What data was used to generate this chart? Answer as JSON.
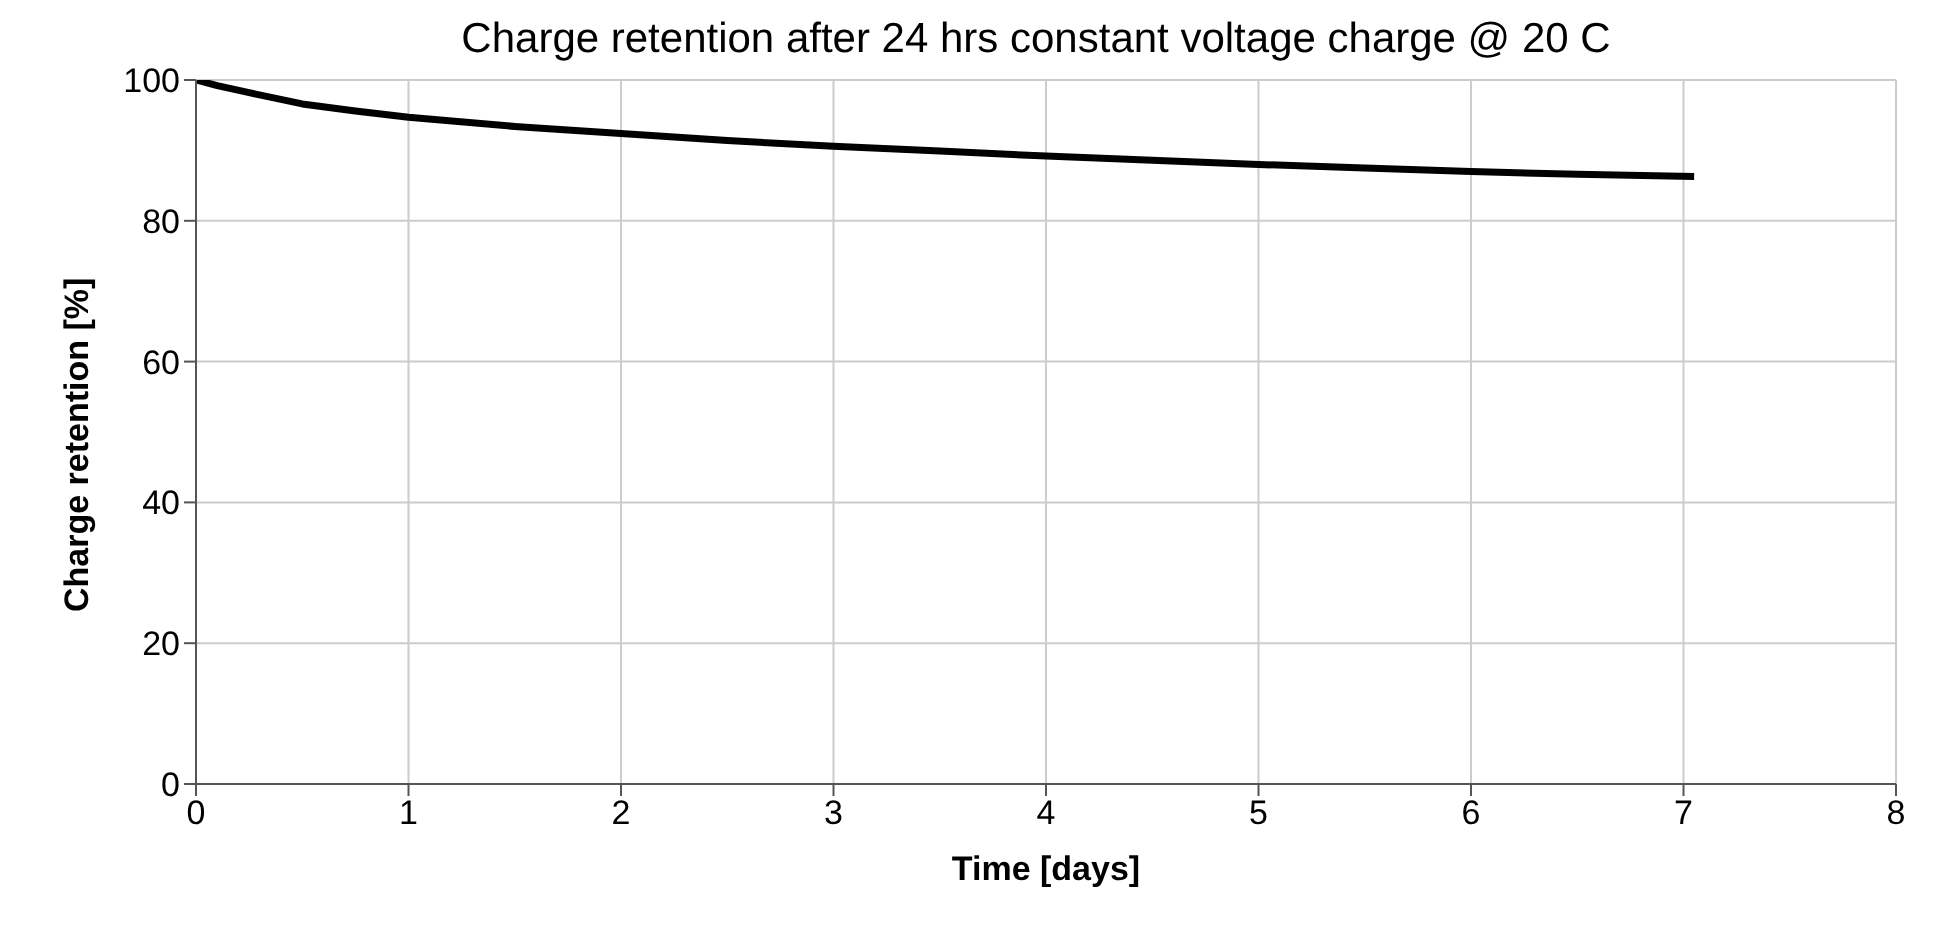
{
  "chart_data": {
    "type": "line",
    "title": "Charge retention after 24 hrs constant voltage charge @ 20 C",
    "xlabel": "Time [days]",
    "ylabel": "Charge retention [%]",
    "x": [
      0,
      0.1,
      0.25,
      0.5,
      0.75,
      1,
      1.5,
      2,
      2.5,
      3,
      3.5,
      4,
      4.5,
      5,
      5.5,
      6,
      6.5,
      7.05
    ],
    "series": [
      {
        "color": "#000000",
        "values": [
          100,
          99.2,
          98.2,
          96.6,
          95.6,
          94.7,
          93.4,
          92.4,
          91.4,
          90.6,
          89.9,
          89.2,
          88.6,
          88.0,
          87.5,
          87.0,
          86.6,
          86.3
        ]
      }
    ],
    "xlim": [
      0,
      8
    ],
    "xticks": [
      0,
      1,
      2,
      3,
      4,
      5,
      6,
      7,
      8
    ],
    "ylim": [
      0,
      100
    ],
    "yticks": [
      0,
      20,
      40,
      60,
      80,
      100
    ],
    "grid": true,
    "marker": "none",
    "line_style": "solid",
    "legend": false
  }
}
